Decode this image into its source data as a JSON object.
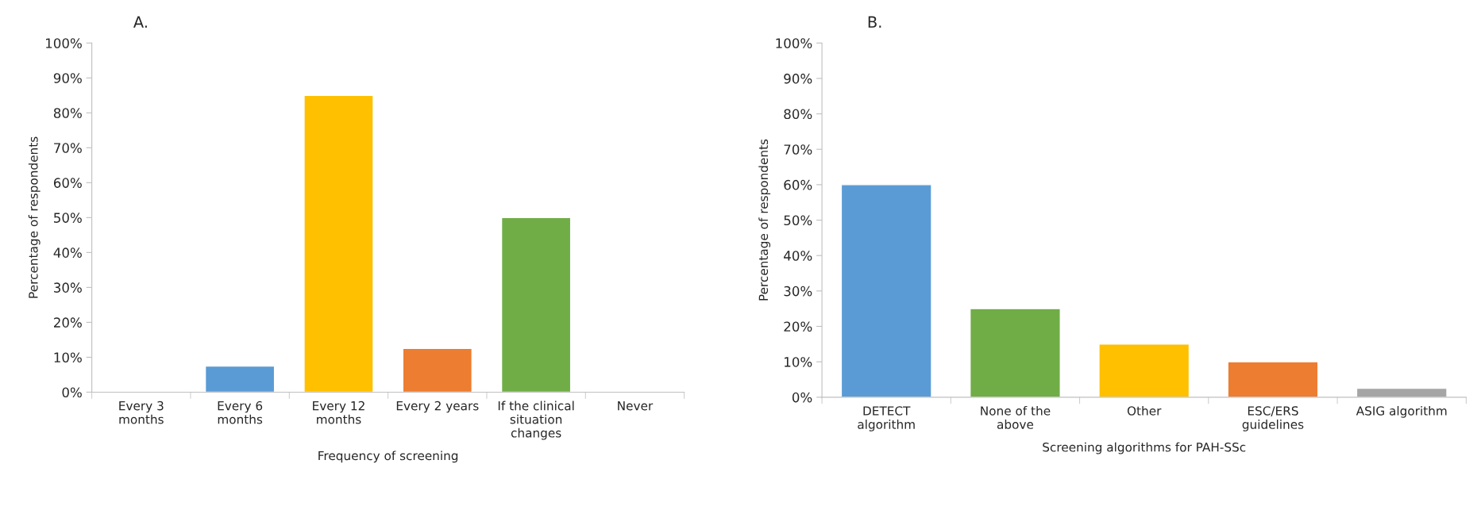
{
  "chart_data": [
    {
      "type": "bar",
      "title": "A.",
      "xlabel": "Frequency of screening",
      "ylabel": "Percentage of respondents",
      "categories": [
        "Every 3\nmonths",
        "Every 6\nmonths",
        "Every 12\nmonths",
        "Every 2 years",
        "If the clinical\nsituation\nchanges",
        "Never"
      ],
      "values": [
        0,
        7.5,
        85,
        12.5,
        50,
        0
      ],
      "colors": [
        null,
        "#5b9bd5",
        "#ffc000",
        "#ed7d31",
        "#70ad47",
        null
      ],
      "ylim": [
        0,
        100
      ],
      "yticks": [
        {
          "value": 0,
          "label": "0%"
        },
        {
          "value": 10,
          "label": "10%"
        },
        {
          "value": 20,
          "label": "20%"
        },
        {
          "value": 30,
          "label": "30%"
        },
        {
          "value": 40,
          "label": "40%"
        },
        {
          "value": 50,
          "label": "50%"
        },
        {
          "value": 60,
          "label": "60%"
        },
        {
          "value": 70,
          "label": "70%"
        },
        {
          "value": 80,
          "label": "80%"
        },
        {
          "value": 90,
          "label": "90%"
        },
        {
          "value": 100,
          "label": "100%"
        }
      ],
      "grid": false,
      "legend": false
    },
    {
      "type": "bar",
      "title": "B.",
      "xlabel": "Screening algorithms for PAH-SSc",
      "ylabel": "Percentage of respondents",
      "categories": [
        "DETECT\nalgorithm",
        "None of the\nabove",
        "Other",
        "ESC/ERS\nguidelines",
        "ASIG algorithm"
      ],
      "values": [
        60,
        25,
        15,
        10,
        2.5
      ],
      "colors": [
        "#5b9bd5",
        "#70ad47",
        "#ffc000",
        "#ed7d31",
        "#a5a5a5"
      ],
      "ylim": [
        0,
        100
      ],
      "yticks": [
        {
          "value": 0,
          "label": "0%"
        },
        {
          "value": 10,
          "label": "10%"
        },
        {
          "value": 20,
          "label": "20%"
        },
        {
          "value": 30,
          "label": "30%"
        },
        {
          "value": 40,
          "label": "40%"
        },
        {
          "value": 50,
          "label": "50%"
        },
        {
          "value": 60,
          "label": "60%"
        },
        {
          "value": 70,
          "label": "70%"
        },
        {
          "value": 80,
          "label": "80%"
        },
        {
          "value": 90,
          "label": "90%"
        },
        {
          "value": 100,
          "label": "100%"
        }
      ],
      "grid": false,
      "legend": false
    }
  ]
}
